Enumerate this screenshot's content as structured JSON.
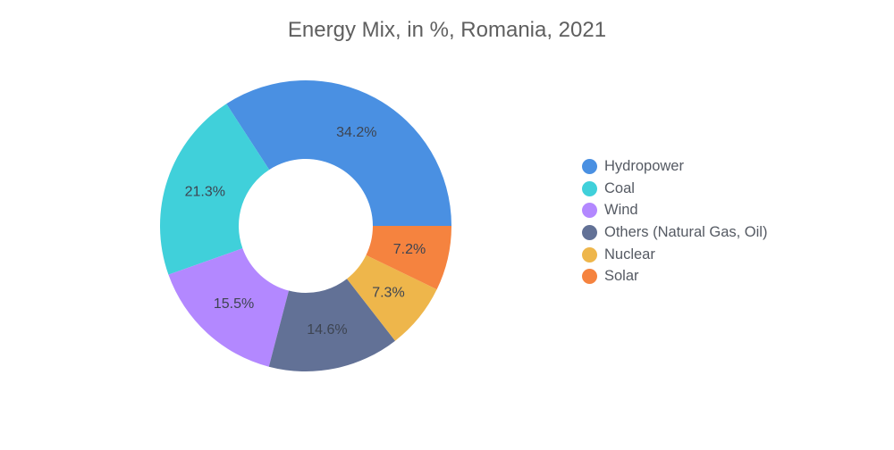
{
  "chart_data": {
    "type": "pie",
    "variant": "donut",
    "title": "Energy Mix, in %, Romania, 2021",
    "unit": "%",
    "legend_position": "right",
    "slices": [
      {
        "label": "Hydropower",
        "value": 34.2,
        "display": "34.2%",
        "color": "#4a90e2"
      },
      {
        "label": "Coal",
        "value": 21.3,
        "display": "21.3%",
        "color": "#40d0da"
      },
      {
        "label": "Wind",
        "value": 15.5,
        "display": "15.5%",
        "color": "#b388ff"
      },
      {
        "label": "Others (Natural Gas, Oil)",
        "value": 14.6,
        "display": "14.6%",
        "color": "#627196"
      },
      {
        "label": "Nuclear",
        "value": 7.3,
        "display": "7.3%",
        "color": "#eeb64b"
      },
      {
        "label": "Solar",
        "value": 7.2,
        "display": "7.2%",
        "color": "#f5833f"
      }
    ]
  }
}
